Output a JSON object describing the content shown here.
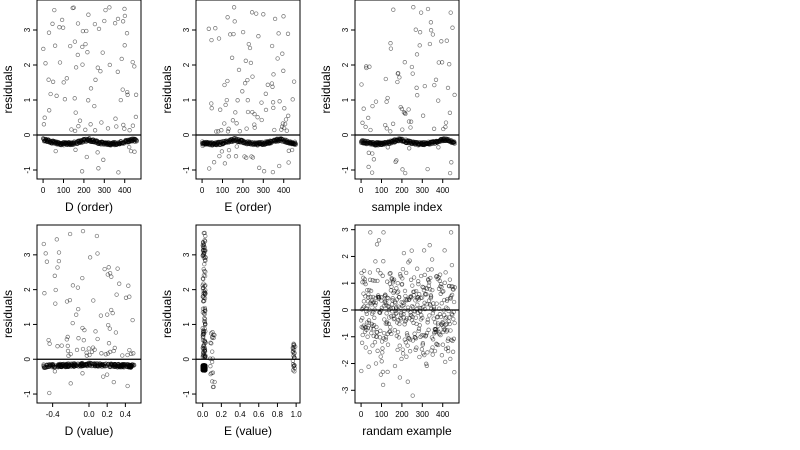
{
  "chart_data": [
    {
      "type": "scatter",
      "xlabel": "D (order)",
      "ylabel": "residuals",
      "xlim": [
        -20,
        470
      ],
      "ylim": [
        -1.2,
        3.8
      ],
      "xticks": [
        0,
        100,
        200,
        300,
        400
      ],
      "xtick_labels": [
        "0",
        "100",
        "200",
        "300",
        "400"
      ],
      "yticks": [
        -1,
        0,
        1,
        2,
        3
      ],
      "ytick_labels": [
        "-1",
        "0",
        "1",
        "2",
        "3"
      ],
      "hline": 0,
      "panel": "A"
    },
    {
      "type": "scatter",
      "xlabel": "E (order)",
      "ylabel": "residuals",
      "xlim": [
        -20,
        470
      ],
      "ylim": [
        -1.2,
        3.8
      ],
      "xticks": [
        0,
        100,
        200,
        300,
        400
      ],
      "xtick_labels": [
        "0",
        "100",
        "200",
        "300",
        "400"
      ],
      "yticks": [
        -1,
        0,
        1,
        2,
        3
      ],
      "ytick_labels": [
        "-1",
        "0",
        "1",
        "2",
        "3"
      ],
      "hline": 0,
      "panel": "B"
    },
    {
      "type": "scatter",
      "xlabel": "sample index",
      "ylabel": "residuals",
      "xlim": [
        -20,
        470
      ],
      "ylim": [
        -1.2,
        3.8
      ],
      "xticks": [
        0,
        100,
        200,
        300,
        400
      ],
      "xtick_labels": [
        "0",
        "100",
        "200",
        "300",
        "400"
      ],
      "yticks": [
        -1,
        0,
        1,
        2,
        3
      ],
      "ytick_labels": [
        "-1",
        "0",
        "1",
        "2",
        "3"
      ],
      "hline": 0,
      "panel": "C"
    },
    {
      "type": "scatter",
      "xlabel": "D (value)",
      "ylabel": "residuals",
      "xlim": [
        -0.55,
        0.55
      ],
      "ylim": [
        -1.2,
        3.8
      ],
      "xticks": [
        -0.4,
        0,
        0.2,
        0.4
      ],
      "xtick_labels": [
        "-0.4",
        "0.0",
        "0.2",
        "0.4"
      ],
      "yticks": [
        -1,
        0,
        1,
        2,
        3
      ],
      "ytick_labels": [
        "-1",
        "0",
        "1",
        "2",
        "3"
      ],
      "hline": 0,
      "panel": "D"
    },
    {
      "type": "scatter",
      "xlabel": "E (value)",
      "ylabel": "residuals",
      "xlim": [
        -0.05,
        1.02
      ],
      "ylim": [
        -1.2,
        3.8
      ],
      "xticks": [
        0,
        0.2,
        0.4,
        0.6,
        0.8,
        1.0
      ],
      "xtick_labels": [
        "0.0",
        "0.2",
        "0.4",
        "0.6",
        "0.8",
        "1.0"
      ],
      "yticks": [
        -1,
        0,
        1,
        2,
        3
      ],
      "ytick_labels": [
        "-1",
        "0",
        "1",
        "2",
        "3"
      ],
      "hline": 0,
      "panel": "E"
    },
    {
      "type": "scatter",
      "xlabel": "randam example",
      "ylabel": "residuals",
      "xlim": [
        -20,
        470
      ],
      "ylim": [
        -3.4,
        3.1
      ],
      "xticks": [
        0,
        100,
        200,
        300,
        400
      ],
      "xtick_labels": [
        "0",
        "100",
        "200",
        "300",
        "400"
      ],
      "yticks": [
        -3,
        -2,
        -1,
        0,
        1,
        2,
        3
      ],
      "ytick_labels": [
        "-3",
        "-2",
        "-1",
        "0",
        "1",
        "2",
        "3"
      ],
      "hline": 0,
      "panel": "F"
    }
  ]
}
